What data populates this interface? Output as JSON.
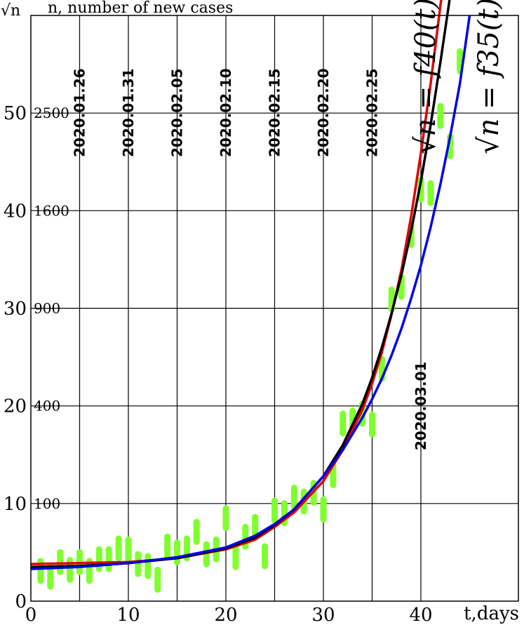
{
  "chart_data": {
    "type": "line",
    "top_left_label": "√n",
    "top_label": "n, number of new cases",
    "x_axis_label": "t,days",
    "xlim": [
      0,
      50
    ],
    "ylim": [
      0,
      60
    ],
    "x_ticks": [
      0,
      10,
      20,
      30,
      40
    ],
    "y_ticks": [
      0,
      10,
      20,
      30,
      40,
      50
    ],
    "secondary_y_ticks": [
      {
        "y": 10,
        "label": "100"
      },
      {
        "y": 20,
        "label": "400"
      },
      {
        "y": 30,
        "label": "900"
      },
      {
        "y": 40,
        "label": "1600"
      },
      {
        "y": 50,
        "label": "2500"
      }
    ],
    "date_markers": [
      {
        "x": 5,
        "label": "2020.01.26",
        "position": "upper"
      },
      {
        "x": 10,
        "label": "2020.01.31",
        "position": "upper"
      },
      {
        "x": 15,
        "label": "2020.02.05",
        "position": "upper"
      },
      {
        "x": 20,
        "label": "2020.02.10",
        "position": "upper"
      },
      {
        "x": 25,
        "label": "2020.02.15",
        "position": "upper"
      },
      {
        "x": 30,
        "label": "2020.02.20",
        "position": "upper"
      },
      {
        "x": 35,
        "label": "2020.02.25",
        "position": "upper"
      },
      {
        "x": 40,
        "label": "2020.03.01",
        "position": "lower"
      }
    ],
    "curve_labels": [
      {
        "text": "√n = f40(t)",
        "color": "#000000"
      },
      {
        "text": "√n = f35(t)",
        "color": "#000000"
      }
    ],
    "series": [
      {
        "color": "#e00000",
        "x": [
          0,
          5,
          10,
          15,
          20,
          23,
          25,
          27,
          30,
          32,
          34,
          35,
          36,
          37,
          38,
          39,
          40,
          41,
          42,
          43
        ],
        "y": [
          3.8,
          3.9,
          4.0,
          4.4,
          5.3,
          6.3,
          7.6,
          9.1,
          12.3,
          15.5,
          19.6,
          22.3,
          25.5,
          29.4,
          33.9,
          39.4,
          45.9,
          53.0,
          61.0,
          68.0
        ]
      },
      {
        "color": "#000000",
        "x": [
          0,
          5,
          10,
          15,
          20,
          23,
          25,
          27,
          30,
          32,
          34,
          35,
          36,
          37,
          38,
          39,
          40,
          41,
          42,
          43,
          44
        ],
        "y": [
          3.5,
          3.6,
          3.9,
          4.4,
          5.4,
          6.5,
          7.8,
          9.4,
          12.8,
          16.0,
          20.2,
          22.9,
          26.0,
          29.5,
          33.4,
          37.9,
          43.0,
          48.8,
          55.2,
          62.0,
          70.0
        ]
      },
      {
        "color": "#0000e6",
        "x": [
          0,
          5,
          10,
          15,
          20,
          23,
          25,
          27,
          30,
          32,
          34,
          35,
          36,
          37,
          38,
          39,
          40,
          41,
          42,
          43,
          44,
          45
        ],
        "y": [
          3.3,
          3.5,
          3.9,
          4.5,
          5.5,
          6.7,
          7.9,
          9.4,
          12.8,
          15.5,
          18.8,
          20.7,
          22.8,
          25.2,
          27.9,
          31.0,
          34.4,
          38.3,
          42.7,
          47.6,
          53.0,
          60.0
        ]
      }
    ],
    "observations": {
      "color": "#7fff2e",
      "points": [
        [
          1,
          3.1
        ],
        [
          2,
          2.5
        ],
        [
          3,
          4.0
        ],
        [
          4,
          3.2
        ],
        [
          5,
          4.0
        ],
        [
          6,
          3.1
        ],
        [
          7,
          4.3
        ],
        [
          8,
          4.3
        ],
        [
          9,
          5.4
        ],
        [
          10,
          5.3
        ],
        [
          11,
          3.8
        ],
        [
          12,
          3.6
        ],
        [
          13,
          2.2
        ],
        [
          14,
          5.6
        ],
        [
          15,
          5.0
        ],
        [
          16,
          5.4
        ],
        [
          17,
          7.1
        ],
        [
          18,
          4.8
        ],
        [
          19,
          5.3
        ],
        [
          20,
          8.5
        ],
        [
          21,
          4.5
        ],
        [
          22,
          6.6
        ],
        [
          23,
          7.6
        ],
        [
          24,
          4.6
        ],
        [
          25,
          9.3
        ],
        [
          26,
          9.0
        ],
        [
          27,
          10.6
        ],
        [
          28,
          10.2
        ],
        [
          29,
          11.1
        ],
        [
          30,
          9.4
        ],
        [
          31,
          12.9
        ],
        [
          32,
          18.2
        ],
        [
          33,
          18.5
        ],
        [
          34,
          19.2
        ],
        [
          35,
          18.1
        ],
        [
          36,
          23.8
        ],
        [
          37,
          30.9
        ],
        [
          38,
          32.2
        ],
        [
          39,
          37.5
        ],
        [
          40,
          42.2
        ],
        [
          41,
          41.8
        ],
        [
          42,
          49.7
        ],
        [
          43,
          46.6
        ],
        [
          44,
          55.3
        ]
      ]
    }
  }
}
